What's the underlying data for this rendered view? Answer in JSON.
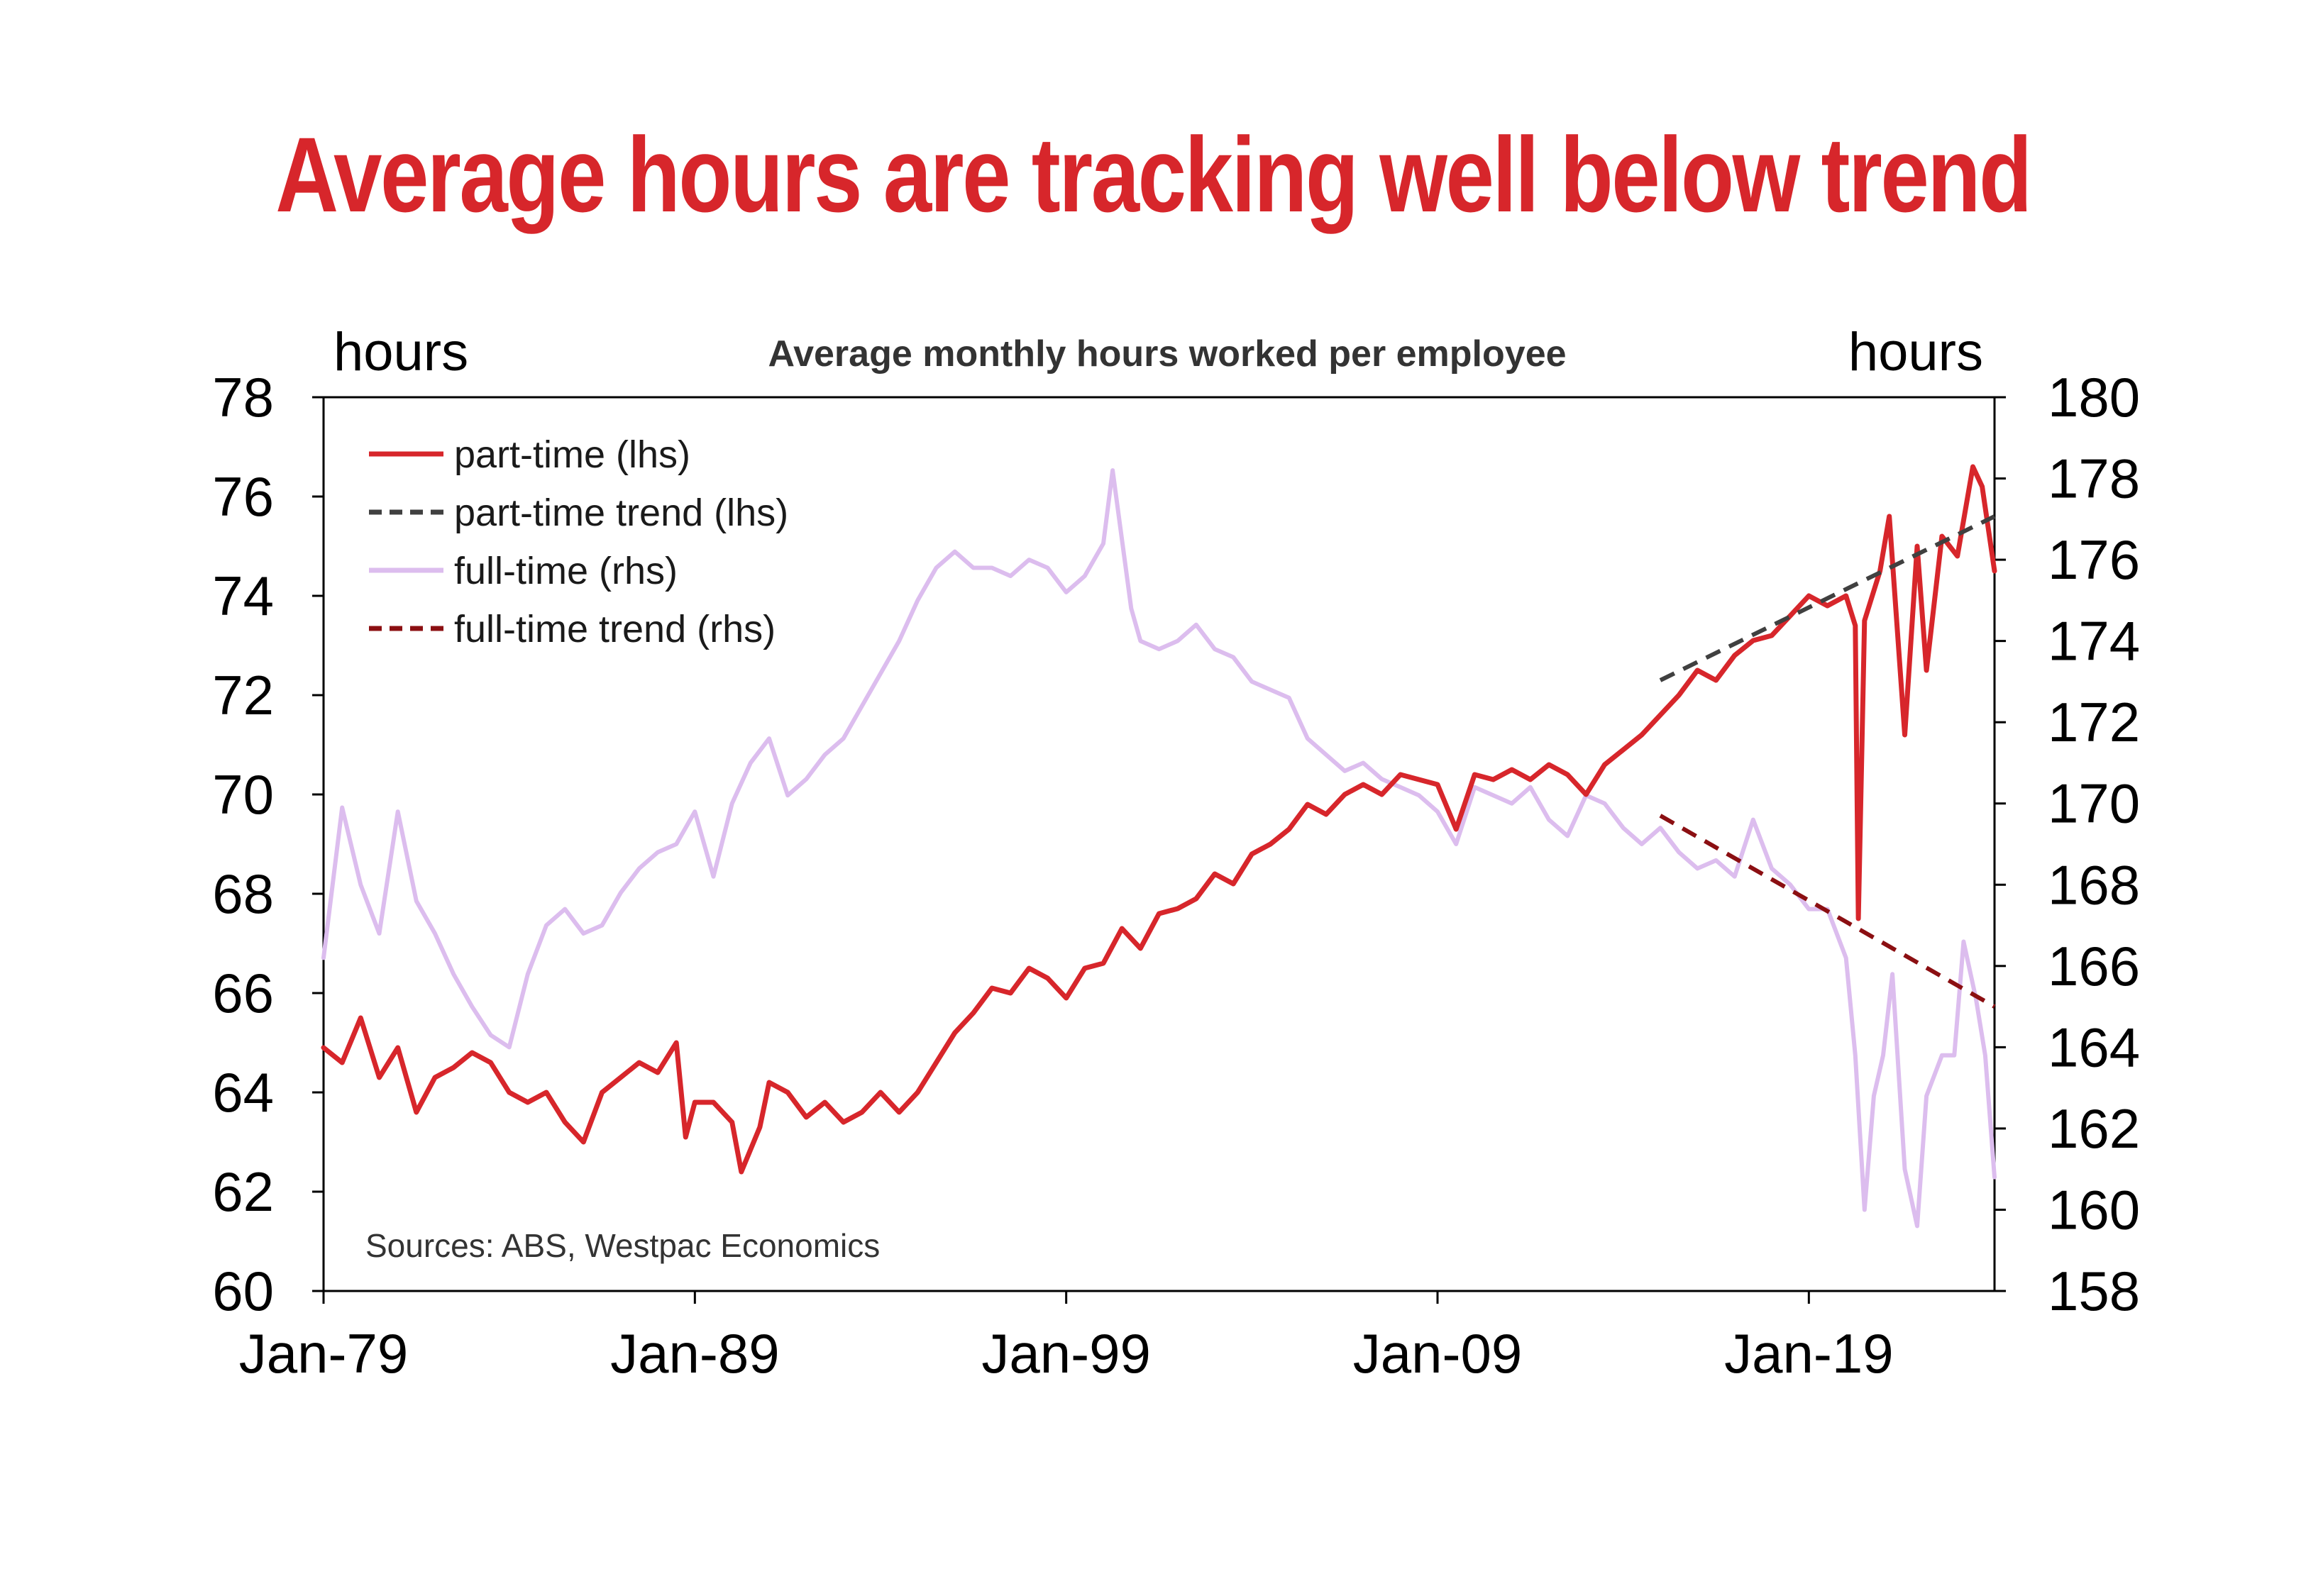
{
  "title": "Average hours are tracking well below trend",
  "chart_data": {
    "type": "line",
    "subtitle": "Average monthly hours worked per employee",
    "left_axis": {
      "label": "hours",
      "ylim": [
        60,
        78
      ],
      "ticks": [
        "60",
        "62",
        "64",
        "66",
        "68",
        "70",
        "72",
        "74",
        "76",
        "78"
      ]
    },
    "right_axis": {
      "label": "hours",
      "ylim": [
        158,
        180
      ],
      "ticks": [
        "158",
        "160",
        "162",
        "164",
        "166",
        "168",
        "170",
        "172",
        "174",
        "176",
        "178",
        "180"
      ]
    },
    "x_axis": {
      "range": [
        "1979-01",
        "2024-01"
      ],
      "ticks": [
        "Jan-79",
        "Jan-89",
        "Jan-99",
        "Jan-09",
        "Jan-19"
      ]
    },
    "legend_position": "top-left",
    "source": "Sources: ABS, Westpac Economics",
    "colors": {
      "title": "#d7262b",
      "part_time": "#d7262b",
      "part_time_trend": "#404040",
      "full_time": "#dcbdee",
      "full_time_trend": "#8b0f12"
    },
    "series": [
      {
        "name": "part-time (lhs)",
        "axis": "left",
        "style": "solid",
        "color": "#d7262b",
        "points": [
          [
            "1979-01",
            64.9
          ],
          [
            "1979-07",
            64.6
          ],
          [
            "1980-01",
            65.5
          ],
          [
            "1980-07",
            64.3
          ],
          [
            "1981-01",
            64.9
          ],
          [
            "1981-07",
            63.6
          ],
          [
            "1982-01",
            64.3
          ],
          [
            "1982-07",
            64.5
          ],
          [
            "1983-01",
            64.8
          ],
          [
            "1983-07",
            64.6
          ],
          [
            "1984-01",
            64.0
          ],
          [
            "1984-07",
            63.8
          ],
          [
            "1985-01",
            64.0
          ],
          [
            "1985-07",
            63.4
          ],
          [
            "1986-01",
            63.0
          ],
          [
            "1986-07",
            64.0
          ],
          [
            "1987-01",
            64.3
          ],
          [
            "1987-07",
            64.6
          ],
          [
            "1988-01",
            64.4
          ],
          [
            "1988-07",
            65.0
          ],
          [
            "1988-10",
            63.1
          ],
          [
            "1989-01",
            63.8
          ],
          [
            "1989-07",
            63.8
          ],
          [
            "1990-01",
            63.4
          ],
          [
            "1990-04",
            62.4
          ],
          [
            "1990-10",
            63.3
          ],
          [
            "1991-01",
            64.2
          ],
          [
            "1991-07",
            64.0
          ],
          [
            "1992-01",
            63.5
          ],
          [
            "1992-07",
            63.8
          ],
          [
            "1993-01",
            63.4
          ],
          [
            "1993-07",
            63.6
          ],
          [
            "1994-01",
            64.0
          ],
          [
            "1994-07",
            63.6
          ],
          [
            "1995-01",
            64.0
          ],
          [
            "1995-07",
            64.6
          ],
          [
            "1996-01",
            65.2
          ],
          [
            "1996-07",
            65.6
          ],
          [
            "1997-01",
            66.1
          ],
          [
            "1997-07",
            66.0
          ],
          [
            "1998-01",
            66.5
          ],
          [
            "1998-07",
            66.3
          ],
          [
            "1999-01",
            65.9
          ],
          [
            "1999-07",
            66.5
          ],
          [
            "2000-01",
            66.6
          ],
          [
            "2000-07",
            67.3
          ],
          [
            "2001-01",
            66.9
          ],
          [
            "2001-07",
            67.6
          ],
          [
            "2002-01",
            67.7
          ],
          [
            "2002-07",
            67.9
          ],
          [
            "2003-01",
            68.4
          ],
          [
            "2003-07",
            68.2
          ],
          [
            "2004-01",
            68.8
          ],
          [
            "2004-07",
            69.0
          ],
          [
            "2005-01",
            69.3
          ],
          [
            "2005-07",
            69.8
          ],
          [
            "2006-01",
            69.6
          ],
          [
            "2006-07",
            70.0
          ],
          [
            "2007-01",
            70.2
          ],
          [
            "2007-07",
            70.0
          ],
          [
            "2008-01",
            70.4
          ],
          [
            "2008-07",
            70.3
          ],
          [
            "2009-01",
            70.2
          ],
          [
            "2009-07",
            69.3
          ],
          [
            "2010-01",
            70.4
          ],
          [
            "2010-07",
            70.3
          ],
          [
            "2011-01",
            70.5
          ],
          [
            "2011-07",
            70.3
          ],
          [
            "2012-01",
            70.6
          ],
          [
            "2012-07",
            70.4
          ],
          [
            "2013-01",
            70.0
          ],
          [
            "2013-07",
            70.6
          ],
          [
            "2014-01",
            70.9
          ],
          [
            "2014-07",
            71.2
          ],
          [
            "2015-01",
            71.6
          ],
          [
            "2015-07",
            72.0
          ],
          [
            "2016-01",
            72.5
          ],
          [
            "2016-07",
            72.3
          ],
          [
            "2017-01",
            72.8
          ],
          [
            "2017-07",
            73.1
          ],
          [
            "2018-01",
            73.2
          ],
          [
            "2018-07",
            73.6
          ],
          [
            "2019-01",
            74.0
          ],
          [
            "2019-07",
            73.8
          ],
          [
            "2020-01",
            74.0
          ],
          [
            "2020-04",
            73.4
          ],
          [
            "2020-05",
            67.5
          ],
          [
            "2020-07",
            73.5
          ],
          [
            "2020-12",
            74.5
          ],
          [
            "2021-03",
            75.6
          ],
          [
            "2021-08",
            71.2
          ],
          [
            "2021-12",
            75.0
          ],
          [
            "2022-03",
            72.5
          ],
          [
            "2022-08",
            75.2
          ],
          [
            "2023-01",
            74.8
          ],
          [
            "2023-06",
            76.6
          ],
          [
            "2023-09",
            76.2
          ],
          [
            "2024-01",
            74.5
          ]
        ]
      },
      {
        "name": "part-time trend (lhs)",
        "axis": "left",
        "style": "dashed",
        "color": "#404040",
        "points": [
          [
            "2015-01",
            72.3
          ],
          [
            "2024-01",
            75.6
          ]
        ]
      },
      {
        "name": "full-time (rhs)",
        "axis": "right",
        "style": "solid",
        "color": "#dcbdee",
        "points": [
          [
            "1979-01",
            166.2
          ],
          [
            "1979-07",
            169.9
          ],
          [
            "1980-01",
            168.0
          ],
          [
            "1980-07",
            166.8
          ],
          [
            "1981-01",
            169.8
          ],
          [
            "1981-07",
            167.6
          ],
          [
            "1982-01",
            166.8
          ],
          [
            "1982-07",
            165.8
          ],
          [
            "1983-01",
            165.0
          ],
          [
            "1983-07",
            164.3
          ],
          [
            "1984-01",
            164.0
          ],
          [
            "1984-07",
            165.8
          ],
          [
            "1985-01",
            167.0
          ],
          [
            "1985-07",
            167.4
          ],
          [
            "1986-01",
            166.8
          ],
          [
            "1986-07",
            167.0
          ],
          [
            "1987-01",
            167.8
          ],
          [
            "1987-07",
            168.4
          ],
          [
            "1988-01",
            168.8
          ],
          [
            "1988-07",
            169.0
          ],
          [
            "1989-01",
            169.8
          ],
          [
            "1989-07",
            168.2
          ],
          [
            "1990-01",
            170.0
          ],
          [
            "1990-07",
            171.0
          ],
          [
            "1991-01",
            171.6
          ],
          [
            "1991-07",
            170.2
          ],
          [
            "1992-01",
            170.6
          ],
          [
            "1992-07",
            171.2
          ],
          [
            "1993-01",
            171.6
          ],
          [
            "1993-07",
            172.4
          ],
          [
            "1994-01",
            173.2
          ],
          [
            "1994-07",
            174.0
          ],
          [
            "1995-01",
            175.0
          ],
          [
            "1995-07",
            175.8
          ],
          [
            "1996-01",
            176.2
          ],
          [
            "1996-07",
            175.8
          ],
          [
            "1997-01",
            175.8
          ],
          [
            "1997-07",
            175.6
          ],
          [
            "1998-01",
            176.0
          ],
          [
            "1998-07",
            175.8
          ],
          [
            "1999-01",
            175.2
          ],
          [
            "1999-07",
            175.6
          ],
          [
            "2000-01",
            176.4
          ],
          [
            "2000-04",
            178.2
          ],
          [
            "2000-10",
            174.8
          ],
          [
            "2001-01",
            174.0
          ],
          [
            "2001-07",
            173.8
          ],
          [
            "2002-01",
            174.0
          ],
          [
            "2002-07",
            174.4
          ],
          [
            "2003-01",
            173.8
          ],
          [
            "2003-07",
            173.6
          ],
          [
            "2004-01",
            173.0
          ],
          [
            "2004-07",
            172.8
          ],
          [
            "2005-01",
            172.6
          ],
          [
            "2005-07",
            171.6
          ],
          [
            "2006-01",
            171.2
          ],
          [
            "2006-07",
            170.8
          ],
          [
            "2007-01",
            171.0
          ],
          [
            "2007-07",
            170.6
          ],
          [
            "2008-01",
            170.4
          ],
          [
            "2008-07",
            170.2
          ],
          [
            "2009-01",
            169.8
          ],
          [
            "2009-07",
            169.0
          ],
          [
            "2010-01",
            170.4
          ],
          [
            "2010-07",
            170.2
          ],
          [
            "2011-01",
            170.0
          ],
          [
            "2011-07",
            170.4
          ],
          [
            "2012-01",
            169.6
          ],
          [
            "2012-07",
            169.2
          ],
          [
            "2013-01",
            170.2
          ],
          [
            "2013-07",
            170.0
          ],
          [
            "2014-01",
            169.4
          ],
          [
            "2014-07",
            169.0
          ],
          [
            "2015-01",
            169.4
          ],
          [
            "2015-07",
            168.8
          ],
          [
            "2016-01",
            168.4
          ],
          [
            "2016-07",
            168.6
          ],
          [
            "2017-01",
            168.2
          ],
          [
            "2017-07",
            169.6
          ],
          [
            "2018-01",
            168.4
          ],
          [
            "2018-07",
            168.0
          ],
          [
            "2019-01",
            167.4
          ],
          [
            "2019-07",
            167.4
          ],
          [
            "2020-01",
            166.2
          ],
          [
            "2020-04",
            163.8
          ],
          [
            "2020-07",
            160.0
          ],
          [
            "2020-10",
            162.8
          ],
          [
            "2021-01",
            163.8
          ],
          [
            "2021-04",
            165.8
          ],
          [
            "2021-08",
            161.0
          ],
          [
            "2021-12",
            159.6
          ],
          [
            "2022-03",
            162.8
          ],
          [
            "2022-08",
            163.8
          ],
          [
            "2022-12",
            163.8
          ],
          [
            "2023-03",
            166.6
          ],
          [
            "2023-07",
            165.2
          ],
          [
            "2023-10",
            163.8
          ],
          [
            "2024-01",
            160.8
          ]
        ]
      },
      {
        "name": "full-time trend (rhs)",
        "axis": "right",
        "style": "dashed",
        "color": "#8b0f12",
        "points": [
          [
            "2015-01",
            169.7
          ],
          [
            "2024-01",
            165.0
          ]
        ]
      }
    ]
  }
}
